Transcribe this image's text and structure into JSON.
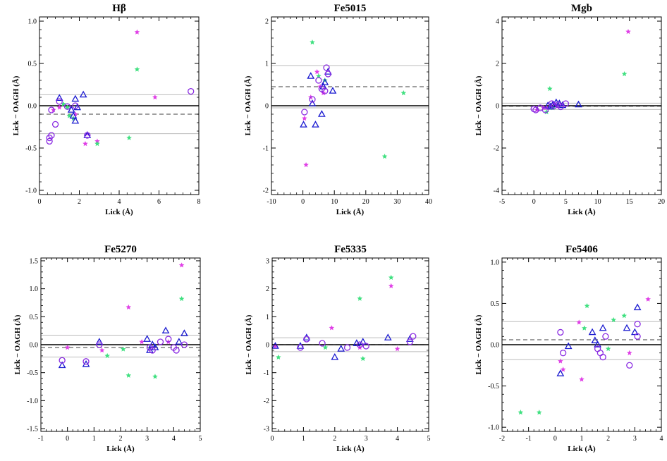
{
  "colors": {
    "magenta": "#e040e6",
    "green": "#40e080",
    "blue": "#1a1ad0",
    "purple": "#8a2be2",
    "axis": "#000000",
    "mean_line": "#666666",
    "sigma_line": "#bbbbbb"
  },
  "chart_data": [
    {
      "type": "scatter",
      "title": "Hβ",
      "xlabel": "Lick (Å)",
      "ylabel": "Lick − OAGH (Å)",
      "xlim": [
        0,
        8
      ],
      "ylim": [
        -1.05,
        1.05
      ],
      "xticks": [
        0,
        2,
        4,
        6,
        8
      ],
      "yticks": [
        -1.0,
        -0.5,
        0.0,
        0.5,
        1.0
      ],
      "yticklabels": [
        "-1.0",
        "-0.5",
        "0.0",
        "0.5",
        "1.0"
      ],
      "mean": -0.1,
      "sigma_band": [
        -0.33,
        0.13
      ],
      "series": [
        {
          "name": "magenta stars",
          "marker": "star",
          "color": "#e040e6",
          "points": [
            [
              4.9,
              0.87
            ],
            [
              5.8,
              0.1
            ],
            [
              2.3,
              -0.45
            ],
            [
              2.9,
              -0.42
            ],
            [
              1.0,
              -0.02
            ],
            [
              0.7,
              -0.05
            ],
            [
              1.8,
              -0.1
            ],
            [
              2.4,
              -0.33
            ]
          ]
        },
        {
          "name": "green stars",
          "marker": "star",
          "color": "#40e080",
          "points": [
            [
              4.9,
              0.43
            ],
            [
              4.5,
              -0.38
            ],
            [
              1.4,
              -0.02
            ],
            [
              1.2,
              0.02
            ],
            [
              2.9,
              -0.45
            ],
            [
              1.5,
              -0.12
            ],
            [
              1.7,
              -0.15
            ]
          ]
        },
        {
          "name": "blue triangles",
          "marker": "triangle",
          "color": "#1a1ad0",
          "points": [
            [
              1.0,
              0.09
            ],
            [
              1.6,
              -0.05
            ],
            [
              2.2,
              0.13
            ],
            [
              1.8,
              0.08
            ],
            [
              1.8,
              -0.18
            ],
            [
              1.7,
              -0.12
            ],
            [
              2.4,
              -0.35
            ],
            [
              1.9,
              -0.02
            ]
          ]
        },
        {
          "name": "purple circles",
          "marker": "circle",
          "color": "#8a2be2",
          "points": [
            [
              0.5,
              -0.38
            ],
            [
              0.6,
              -0.35
            ],
            [
              0.8,
              -0.22
            ],
            [
              0.6,
              -0.05
            ],
            [
              1.0,
              0.05
            ],
            [
              7.6,
              0.17
            ],
            [
              1.8,
              0.0
            ],
            [
              2.4,
              -0.35
            ],
            [
              1.4,
              -0.01
            ],
            [
              0.5,
              -0.42
            ]
          ]
        }
      ]
    },
    {
      "type": "scatter",
      "title": "Fe5015",
      "xlabel": "Lick (Å)",
      "ylabel": "Lick − OAGH (Å)",
      "xlim": [
        -10,
        40
      ],
      "ylim": [
        -2.1,
        2.1
      ],
      "xticks": [
        -10,
        0,
        10,
        20,
        30,
        40
      ],
      "yticks": [
        -2,
        -1,
        0,
        1,
        2
      ],
      "yticklabels": [
        "-2",
        "-1",
        "0",
        "1",
        "2"
      ],
      "mean": 0.45,
      "sigma_band": [
        -0.05,
        0.95
      ],
      "series": [
        {
          "name": "magenta stars",
          "marker": "star",
          "color": "#e040e6",
          "points": [
            [
              1.0,
              -1.4
            ],
            [
              0.5,
              -0.3
            ],
            [
              2.5,
              0.2
            ],
            [
              4.5,
              0.8
            ],
            [
              5.5,
              0.45
            ],
            [
              6.5,
              0.3
            ]
          ]
        },
        {
          "name": "green stars",
          "marker": "star",
          "color": "#40e080",
          "points": [
            [
              3.0,
              1.5
            ],
            [
              32.0,
              0.3
            ],
            [
              26.0,
              -1.2
            ],
            [
              5.0,
              0.7
            ],
            [
              7.0,
              0.6
            ]
          ]
        },
        {
          "name": "blue triangles",
          "marker": "triangle",
          "color": "#1a1ad0",
          "points": [
            [
              2.5,
              0.7
            ],
            [
              7.0,
              0.55
            ],
            [
              8.0,
              0.8
            ],
            [
              6.5,
              0.45
            ],
            [
              0.2,
              -0.45
            ],
            [
              6.0,
              -0.2
            ],
            [
              4.0,
              -0.45
            ],
            [
              9.5,
              0.35
            ],
            [
              3.0,
              0.05
            ]
          ]
        },
        {
          "name": "purple circles",
          "marker": "circle",
          "color": "#8a2be2",
          "points": [
            [
              7.5,
              0.9
            ],
            [
              6.0,
              0.4
            ],
            [
              7.0,
              0.35
            ],
            [
              8.0,
              0.75
            ],
            [
              3.0,
              0.15
            ],
            [
              5.0,
              0.6
            ],
            [
              0.5,
              -0.15
            ]
          ]
        }
      ]
    },
    {
      "type": "scatter",
      "title": "Mgb",
      "xlabel": "Lick (Å)",
      "ylabel": "Lick − OAGH (Å)",
      "xlim": [
        -5,
        20
      ],
      "ylim": [
        -4.2,
        4.2
      ],
      "xticks": [
        -5,
        0,
        5,
        10,
        15,
        20
      ],
      "yticks": [
        -4,
        -2,
        0,
        2,
        4
      ],
      "yticklabels": [
        "-4",
        "-2",
        "0",
        "2",
        "4"
      ],
      "mean": -0.02,
      "sigma_band": [
        -0.18,
        0.12
      ],
      "series": [
        {
          "name": "magenta stars",
          "marker": "star",
          "color": "#e040e6",
          "points": [
            [
              14.8,
              3.5
            ],
            [
              1.5,
              -0.1
            ],
            [
              0.5,
              -0.2
            ],
            [
              2.0,
              -0.1
            ]
          ]
        },
        {
          "name": "green stars",
          "marker": "star",
          "color": "#40e080",
          "points": [
            [
              14.2,
              1.5
            ],
            [
              2.5,
              0.8
            ],
            [
              3.0,
              -0.1
            ],
            [
              2.0,
              -0.3
            ]
          ]
        },
        {
          "name": "blue triangles",
          "marker": "triangle",
          "color": "#1a1ad0",
          "points": [
            [
              2.2,
              0.0
            ],
            [
              3.0,
              0.05
            ],
            [
              4.0,
              0.1
            ],
            [
              4.5,
              0.02
            ],
            [
              7.0,
              0.05
            ],
            [
              2.6,
              -0.05
            ],
            [
              3.5,
              0.15
            ]
          ]
        },
        {
          "name": "purple circles",
          "marker": "circle",
          "color": "#8a2be2",
          "points": [
            [
              0.0,
              -0.15
            ],
            [
              1.0,
              -0.1
            ],
            [
              2.8,
              0.1
            ],
            [
              3.2,
              0.0
            ],
            [
              4.2,
              -0.05
            ],
            [
              5.0,
              0.1
            ],
            [
              0.3,
              -0.2
            ],
            [
              1.8,
              -0.2
            ],
            [
              3.8,
              0.05
            ]
          ]
        }
      ]
    },
    {
      "type": "scatter",
      "title": "Fe5270",
      "xlabel": "Lick (Å)",
      "ylabel": "Lick − OAGH (Å)",
      "xlim": [
        -1,
        5
      ],
      "ylim": [
        -1.55,
        1.55
      ],
      "xticks": [
        -1,
        0,
        1,
        2,
        3,
        4,
        5
      ],
      "yticks": [
        -1.5,
        -1.0,
        -0.5,
        0.0,
        0.5,
        1.0,
        1.5
      ],
      "yticklabels": [
        "-1.5",
        "-1.0",
        "-0.5",
        "0.0",
        "0.5",
        "1.0",
        "1.5"
      ],
      "mean": -0.05,
      "sigma_band": [
        -0.22,
        0.17
      ],
      "series": [
        {
          "name": "magenta stars",
          "marker": "star",
          "color": "#e040e6",
          "points": [
            [
              4.3,
              1.42
            ],
            [
              2.3,
              0.67
            ],
            [
              0.0,
              -0.05
            ],
            [
              1.3,
              -0.1
            ],
            [
              3.8,
              0.05
            ],
            [
              2.8,
              0.05
            ]
          ]
        },
        {
          "name": "green stars",
          "marker": "star",
          "color": "#40e080",
          "points": [
            [
              4.3,
              0.82
            ],
            [
              2.3,
              -0.55
            ],
            [
              3.3,
              -0.57
            ],
            [
              1.5,
              -0.2
            ],
            [
              2.1,
              -0.08
            ]
          ]
        },
        {
          "name": "blue triangles",
          "marker": "triangle",
          "color": "#1a1ad0",
          "points": [
            [
              -0.2,
              -0.37
            ],
            [
              0.7,
              -0.35
            ],
            [
              1.2,
              0.05
            ],
            [
              3.0,
              0.1
            ],
            [
              3.1,
              -0.1
            ],
            [
              3.3,
              -0.05
            ],
            [
              3.7,
              0.25
            ],
            [
              4.2,
              0.05
            ],
            [
              4.4,
              0.2
            ],
            [
              3.2,
              0.0
            ]
          ]
        },
        {
          "name": "purple circles",
          "marker": "circle",
          "color": "#8a2be2",
          "points": [
            [
              -0.2,
              -0.28
            ],
            [
              0.7,
              -0.3
            ],
            [
              1.2,
              0.0
            ],
            [
              3.1,
              -0.05
            ],
            [
              3.2,
              -0.1
            ],
            [
              3.5,
              0.05
            ],
            [
              4.0,
              -0.05
            ],
            [
              4.1,
              -0.1
            ],
            [
              3.8,
              0.1
            ],
            [
              4.4,
              0.0
            ]
          ]
        }
      ]
    },
    {
      "type": "scatter",
      "title": "Fe5335",
      "xlabel": "Lick (Å)",
      "ylabel": "Lick − OAGH (Å)",
      "xlim": [
        0,
        5
      ],
      "ylim": [
        -3.1,
        3.1
      ],
      "xticks": [
        0,
        1,
        2,
        3,
        4,
        5
      ],
      "yticks": [
        -3,
        -2,
        -1,
        0,
        1,
        2,
        3
      ],
      "yticklabels": [
        "-3",
        "-2",
        "-1",
        "0",
        "1",
        "2",
        "3"
      ],
      "mean": 0.0,
      "sigma_band": [
        -0.25,
        0.25
      ],
      "series": [
        {
          "name": "magenta stars",
          "marker": "star",
          "color": "#e040e6",
          "points": [
            [
              3.8,
              2.1
            ],
            [
              1.9,
              0.6
            ],
            [
              0.1,
              -0.05
            ],
            [
              2.8,
              -0.1
            ],
            [
              4.0,
              -0.15
            ]
          ]
        },
        {
          "name": "green stars",
          "marker": "star",
          "color": "#40e080",
          "points": [
            [
              3.8,
              2.4
            ],
            [
              2.8,
              1.65
            ],
            [
              2.9,
              -0.5
            ],
            [
              0.2,
              -0.45
            ],
            [
              1.7,
              -0.1
            ]
          ]
        },
        {
          "name": "blue triangles",
          "marker": "triangle",
          "color": "#1a1ad0",
          "points": [
            [
              0.1,
              -0.05
            ],
            [
              1.1,
              0.25
            ],
            [
              2.2,
              -0.15
            ],
            [
              2.7,
              0.05
            ],
            [
              2.9,
              0.1
            ],
            [
              3.7,
              0.25
            ],
            [
              4.4,
              0.2
            ],
            [
              0.9,
              -0.05
            ],
            [
              2.0,
              -0.45
            ]
          ]
        },
        {
          "name": "purple circles",
          "marker": "circle",
          "color": "#8a2be2",
          "points": [
            [
              1.1,
              0.2
            ],
            [
              2.4,
              -0.1
            ],
            [
              2.8,
              0.0
            ],
            [
              3.0,
              -0.05
            ],
            [
              4.4,
              0.1
            ],
            [
              4.5,
              0.3
            ],
            [
              1.6,
              0.05
            ],
            [
              0.9,
              -0.1
            ]
          ]
        }
      ]
    },
    {
      "type": "scatter",
      "title": "Fe5406",
      "xlabel": "Lick (Å)",
      "ylabel": "Lick − OAGH (Å)",
      "xlim": [
        -2,
        4
      ],
      "ylim": [
        -1.05,
        1.05
      ],
      "xticks": [
        -2,
        -1,
        0,
        1,
        2,
        3,
        4
      ],
      "yticks": [
        -1.0,
        -0.5,
        0.0,
        0.5,
        1.0
      ],
      "yticklabels": [
        "-1.0",
        "-0.5",
        "0.0",
        "0.5",
        "1.0"
      ],
      "mean": 0.06,
      "sigma_band": [
        -0.18,
        0.28
      ],
      "series": [
        {
          "name": "magenta stars",
          "marker": "star",
          "color": "#e040e6",
          "points": [
            [
              3.5,
              0.55
            ],
            [
              0.9,
              0.27
            ],
            [
              1.0,
              -0.42
            ],
            [
              0.3,
              -0.3
            ],
            [
              0.2,
              -0.2
            ],
            [
              2.8,
              -0.1
            ]
          ]
        },
        {
          "name": "green stars",
          "marker": "star",
          "color": "#40e080",
          "points": [
            [
              -1.3,
              -0.82
            ],
            [
              -0.6,
              -0.82
            ],
            [
              1.2,
              0.47
            ],
            [
              2.2,
              0.3
            ],
            [
              2.6,
              0.35
            ],
            [
              1.1,
              0.2
            ],
            [
              2.0,
              -0.05
            ]
          ]
        },
        {
          "name": "blue triangles",
          "marker": "triangle",
          "color": "#1a1ad0",
          "points": [
            [
              0.5,
              -0.02
            ],
            [
              1.4,
              0.15
            ],
            [
              1.5,
              0.05
            ],
            [
              1.8,
              0.2
            ],
            [
              2.7,
              0.2
            ],
            [
              3.1,
              0.45
            ],
            [
              3.0,
              0.15
            ],
            [
              1.6,
              0.0
            ],
            [
              0.2,
              -0.35
            ]
          ]
        },
        {
          "name": "purple circles",
          "marker": "circle",
          "color": "#8a2be2",
          "points": [
            [
              0.2,
              0.15
            ],
            [
              1.7,
              -0.1
            ],
            [
              1.8,
              -0.15
            ],
            [
              3.1,
              0.25
            ],
            [
              2.8,
              -0.25
            ],
            [
              1.6,
              -0.05
            ],
            [
              3.1,
              0.1
            ],
            [
              0.3,
              -0.1
            ],
            [
              1.9,
              0.1
            ]
          ]
        }
      ]
    }
  ]
}
